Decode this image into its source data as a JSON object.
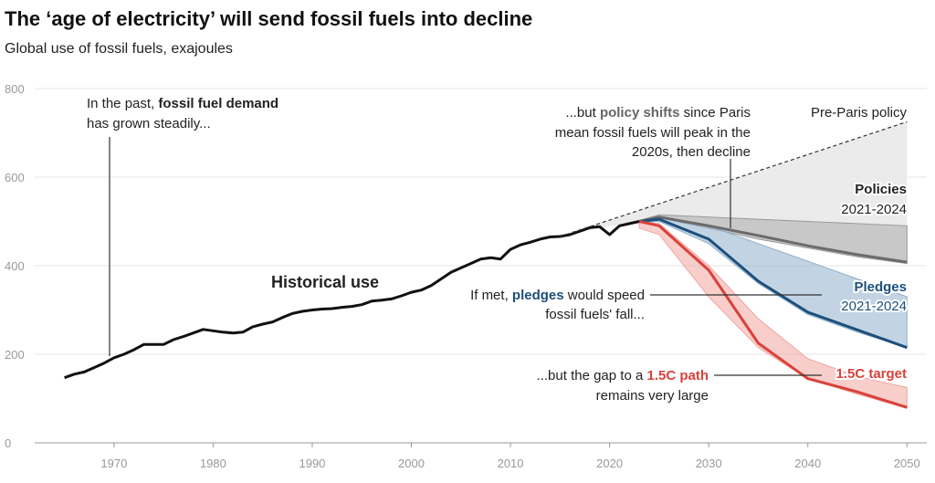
{
  "chart_data": {
    "type": "line",
    "title": "The ‘age of electricity’ will send fossil fuels into decline",
    "subtitle": "Global use of fossil fuels, exajoules",
    "xlim": [
      1962,
      2052
    ],
    "xticks": [
      1970,
      1980,
      1990,
      2000,
      2010,
      2020,
      2030,
      2040,
      2050
    ],
    "ylim": [
      0,
      800
    ],
    "yticks": [
      0,
      200,
      400,
      600,
      800
    ],
    "grid": true,
    "series": [
      {
        "name": "Historical use",
        "color": "#111111",
        "x": [
          1965,
          1966,
          1967,
          1968,
          1969,
          1970,
          1971,
          1972,
          1973,
          1974,
          1975,
          1976,
          1977,
          1978,
          1979,
          1980,
          1981,
          1982,
          1983,
          1984,
          1985,
          1986,
          1987,
          1988,
          1989,
          1990,
          1991,
          1992,
          1993,
          1994,
          1995,
          1996,
          1997,
          1998,
          1999,
          2000,
          2001,
          2002,
          2003,
          2004,
          2005,
          2006,
          2007,
          2008,
          2009,
          2010,
          2011,
          2012,
          2013,
          2014,
          2015,
          2016,
          2017,
          2018,
          2019,
          2020,
          2021,
          2022,
          2023
        ],
        "values": [
          147,
          155,
          160,
          170,
          180,
          192,
          200,
          210,
          222,
          222,
          222,
          233,
          240,
          248,
          256,
          253,
          250,
          248,
          250,
          262,
          268,
          273,
          283,
          292,
          297,
          300,
          302,
          303,
          306,
          308,
          312,
          320,
          322,
          325,
          332,
          340,
          345,
          355,
          370,
          385,
          395,
          405,
          415,
          418,
          415,
          437,
          447,
          453,
          460,
          465,
          466,
          470,
          478,
          486,
          488,
          470,
          490,
          495,
          500
        ]
      },
      {
        "name": "Pre-Paris policy",
        "color": "#333333",
        "x": [
          2015,
          2050
        ],
        "values": [
          466,
          725
        ]
      },
      {
        "name": "Policies",
        "period": "2021-2024",
        "color": "#6b6b6b",
        "band_color": "#9a9a9a",
        "x": [
          2023,
          2025,
          2030,
          2035,
          2040,
          2045,
          2050
        ],
        "values": [
          500,
          510,
          490,
          468,
          445,
          425,
          408
        ],
        "low": [
          500,
          508,
          485,
          460,
          440,
          420,
          405
        ],
        "high": [
          502,
          515,
          510,
          505,
          500,
          495,
          490
        ]
      },
      {
        "name": "Pledges",
        "period": "2021-2024",
        "color": "#1d4f7c",
        "band_color": "#8fb0cc",
        "x": [
          2023,
          2025,
          2030,
          2035,
          2040,
          2045,
          2050
        ],
        "values": [
          500,
          505,
          460,
          365,
          295,
          255,
          215
        ],
        "low": [
          498,
          500,
          450,
          360,
          290,
          250,
          215
        ],
        "high": [
          502,
          512,
          490,
          450,
          410,
          370,
          330
        ]
      },
      {
        "name": "1.5C target",
        "color": "#d9413a",
        "band_color": "#f2a5a0",
        "x": [
          2023,
          2025,
          2030,
          2035,
          2040,
          2045,
          2050
        ],
        "values": [
          500,
          490,
          390,
          225,
          145,
          115,
          80
        ],
        "low": [
          485,
          470,
          330,
          215,
          145,
          110,
          78
        ],
        "high": [
          500,
          495,
          400,
          280,
          190,
          150,
          125
        ]
      }
    ],
    "annotations": [
      {
        "lines": [
          [
            "In the past, ",
            "fossil fuel demand"
          ],
          [
            "has grown steadily..."
          ]
        ]
      },
      {
        "lines": [
          [
            "...but ",
            "policy shifts",
            " since Paris"
          ],
          [
            "mean fossil fuels will peak in the"
          ],
          [
            "2020s, then decline"
          ]
        ]
      },
      {
        "lines": [
          [
            "If met, ",
            "pledges",
            " would speed"
          ],
          [
            "fossil fuels' fall..."
          ]
        ]
      },
      {
        "lines": [
          [
            "...but the gap to a ",
            "1.5C path"
          ],
          [
            "remains very large"
          ]
        ]
      }
    ]
  }
}
